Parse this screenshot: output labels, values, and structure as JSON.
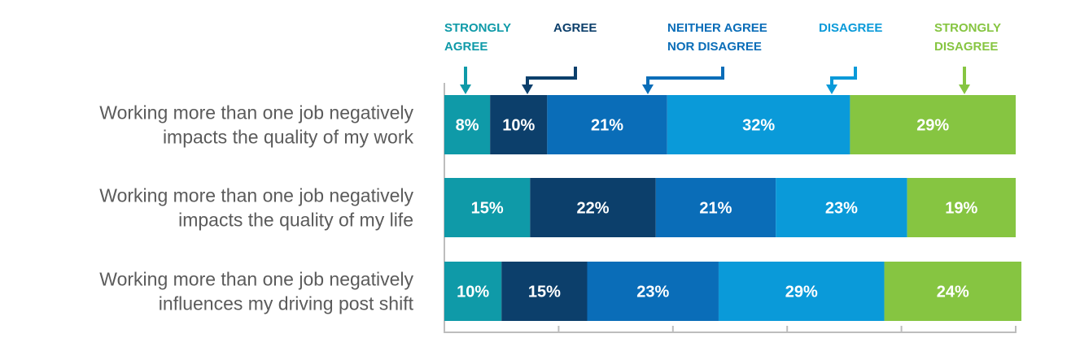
{
  "chart_data": {
    "type": "bar",
    "orientation": "horizontal",
    "stacked": true,
    "categories": [
      [
        "Working more than one job negatively",
        "impacts the quality of my work"
      ],
      [
        "Working more than one job negatively",
        "impacts the quality of my life"
      ],
      [
        "Working more than one job negatively",
        "influences my driving post shift"
      ]
    ],
    "series": [
      {
        "name": [
          "STRONGLY",
          "AGREE"
        ],
        "color": "#0f9aa8",
        "values": [
          8,
          15,
          10
        ]
      },
      {
        "name": [
          "AGREE"
        ],
        "color": "#0c3f6b",
        "values": [
          10,
          22,
          15
        ]
      },
      {
        "name": [
          "NEITHER AGREE",
          "NOR DISAGREE"
        ],
        "color": "#0a6db8",
        "values": [
          21,
          21,
          23
        ]
      },
      {
        "name": [
          "DISAGREE"
        ],
        "color": "#0a9ad9",
        "values": [
          32,
          23,
          29
        ]
      },
      {
        "name": [
          "STRONGLY",
          "DISAGREE"
        ],
        "color": "#86c541",
        "values": [
          29,
          19,
          24
        ]
      }
    ],
    "value_suffix": "%",
    "xlim": [
      0,
      100
    ],
    "legend_position": "top",
    "grid": false
  }
}
